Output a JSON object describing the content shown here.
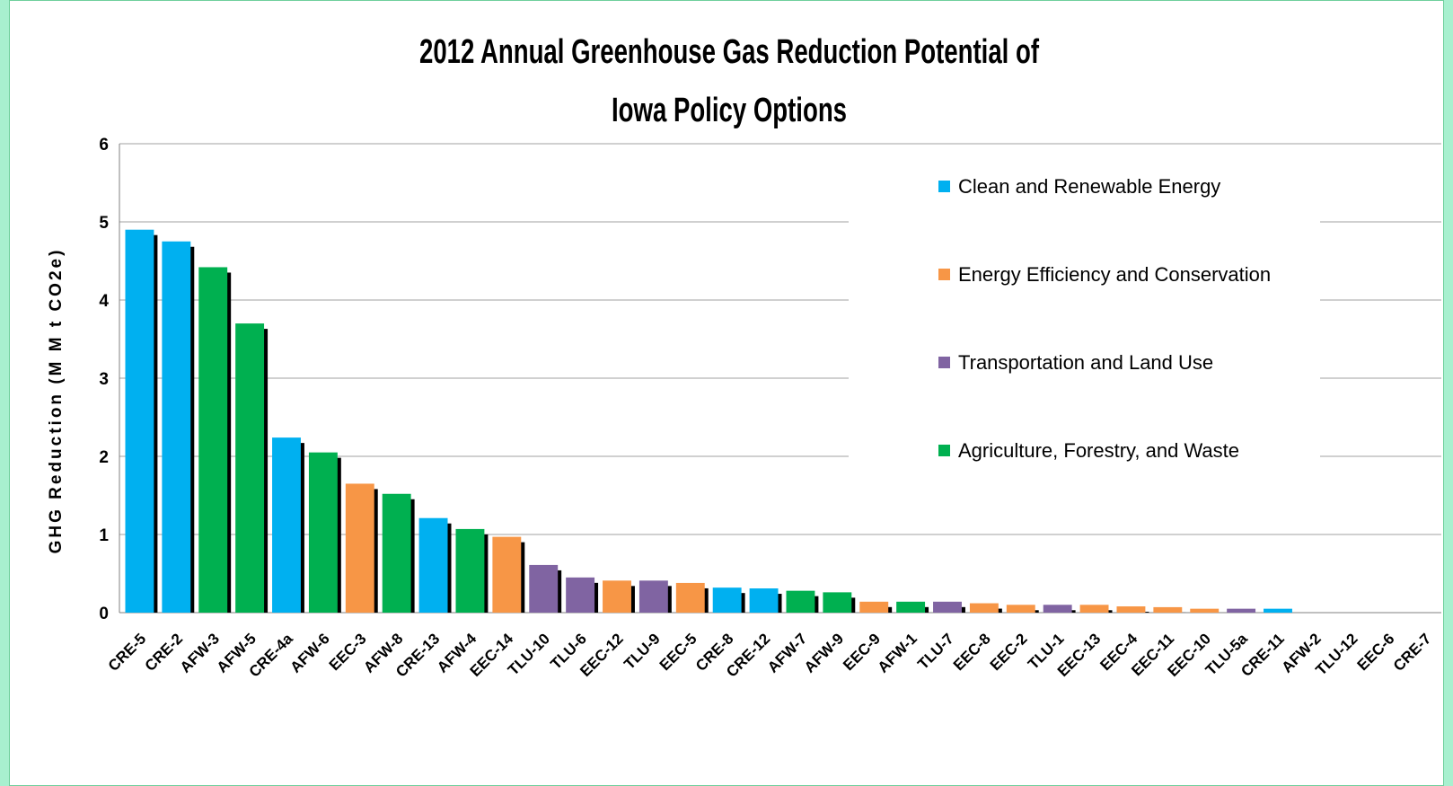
{
  "chart_data": {
    "type": "bar",
    "title_lines": [
      "2012 Annual Greenhouse Gas Reduction Potential of",
      "Iowa Policy Options"
    ],
    "xlabel": "",
    "ylabel": "GHG Reduction (M M t CO2e)",
    "ylim": [
      0,
      6
    ],
    "yticks": [
      "0",
      "1",
      "2",
      "3",
      "4",
      "5",
      "6"
    ],
    "grid": true,
    "legend_position": "top-right",
    "colors": {
      "Clean and Renewable Energy": "#00b0f0",
      "Energy Efficiency and Conservation": "#f79646",
      "Transportation and Land Use": "#8064a2",
      "Agriculture, Forestry, and Waste": "#00b050"
    },
    "legend": [
      "Clean and Renewable Energy",
      "Energy Efficiency and Conservation",
      "Transportation and Land Use",
      "Agriculture, Forestry, and Waste"
    ],
    "categories": [
      "CRE-5",
      "CRE-2",
      "AFW-3",
      "AFW-5",
      "CRE-4a",
      "AFW-6",
      "EEC-3",
      "AFW-8",
      "CRE-13",
      "AFW-4",
      "EEC-14",
      "TLU-10",
      "TLU-6",
      "EEC-12",
      "TLU-9",
      "EEC-5",
      "CRE-8",
      "CRE-12",
      "AFW-7",
      "AFW-9",
      "EEC-9",
      "AFW-1",
      "TLU-7",
      "EEC-8",
      "EEC-2",
      "TLU-1",
      "EEC-13",
      "EEC-4",
      "EEC-11",
      "EEC-10",
      "TLU-5a",
      "CRE-11",
      "AFW-2",
      "TLU-12",
      "EEC-6",
      "CRE-7"
    ],
    "groups": [
      "Clean and Renewable Energy",
      "Clean and Renewable Energy",
      "Agriculture, Forestry, and Waste",
      "Agriculture, Forestry, and Waste",
      "Clean and Renewable Energy",
      "Agriculture, Forestry, and Waste",
      "Energy Efficiency and Conservation",
      "Agriculture, Forestry, and Waste",
      "Clean and Renewable Energy",
      "Agriculture, Forestry, and Waste",
      "Energy Efficiency and Conservation",
      "Transportation and Land Use",
      "Transportation and Land Use",
      "Energy Efficiency and Conservation",
      "Transportation and Land Use",
      "Energy Efficiency and Conservation",
      "Clean and Renewable Energy",
      "Clean and Renewable Energy",
      "Agriculture, Forestry, and Waste",
      "Agriculture, Forestry, and Waste",
      "Energy Efficiency and Conservation",
      "Agriculture, Forestry, and Waste",
      "Transportation and Land Use",
      "Energy Efficiency and Conservation",
      "Energy Efficiency and Conservation",
      "Transportation and Land Use",
      "Energy Efficiency and Conservation",
      "Energy Efficiency and Conservation",
      "Energy Efficiency and Conservation",
      "Energy Efficiency and Conservation",
      "Transportation and Land Use",
      "Clean and Renewable Energy",
      "Agriculture, Forestry, and Waste",
      "Transportation and Land Use",
      "Energy Efficiency and Conservation",
      "Clean and Renewable Energy"
    ],
    "values": [
      4.9,
      4.75,
      4.42,
      3.7,
      2.24,
      2.05,
      1.65,
      1.52,
      1.21,
      1.07,
      0.97,
      0.61,
      0.45,
      0.41,
      0.41,
      0.38,
      0.32,
      0.31,
      0.28,
      0.26,
      0.14,
      0.14,
      0.14,
      0.12,
      0.1,
      0.1,
      0.1,
      0.08,
      0.07,
      0.05,
      0.05,
      0.05,
      0.0,
      0.0,
      0.0,
      0.0
    ]
  }
}
